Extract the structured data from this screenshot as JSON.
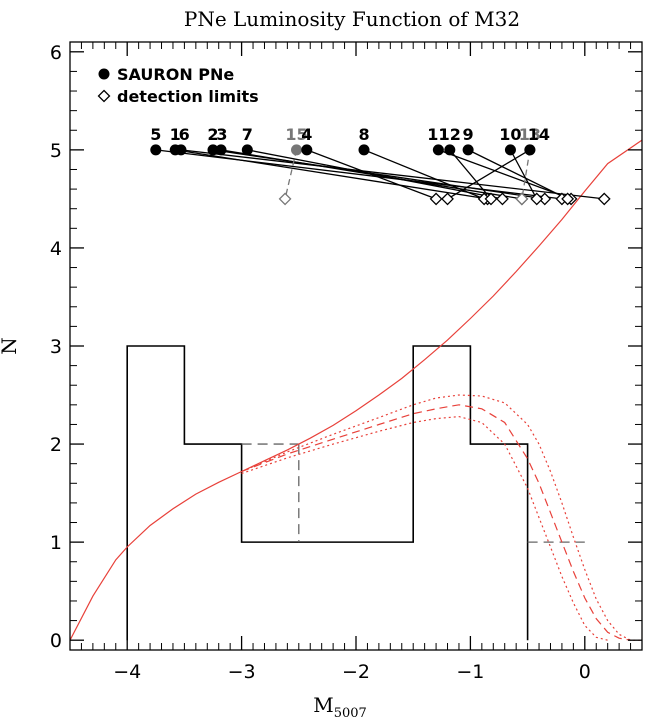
{
  "chart_data": {
    "type": "line",
    "title": "PNe Luminosity Function of M32",
    "xlabel_main": "M",
    "xlabel_sub": "5007",
    "ylabel": "N",
    "xlim": [
      -4.5,
      0.5
    ],
    "ylim": [
      -0.1,
      6.1
    ],
    "xticks": [
      -4,
      -3,
      -2,
      -1,
      0
    ],
    "yticks": [
      0,
      1,
      2,
      3,
      4,
      5,
      6
    ],
    "legend": {
      "placement": "top-left",
      "entries": [
        {
          "marker": "filled-circle",
          "label": "SAURON PNe"
        },
        {
          "marker": "open-diamond",
          "label": "detection limits"
        }
      ]
    },
    "histogram_solid": [
      {
        "x0": -4.0,
        "x1": -3.5,
        "count": 3
      },
      {
        "x0": -3.5,
        "x1": -3.0,
        "count": 2
      },
      {
        "x0": -3.0,
        "x1": -1.5,
        "count": 1
      },
      {
        "x0": -1.5,
        "x1": -1.0,
        "count": 3
      },
      {
        "x0": -1.0,
        "x1": -0.5,
        "count": 2
      }
    ],
    "histogram_dashed": [
      {
        "x0": -3.0,
        "x1": -2.5,
        "count": 2
      },
      {
        "x0": 0.0,
        "x1": -0.5,
        "count": 1
      }
    ],
    "pne": [
      {
        "id": "5",
        "m": -3.75,
        "limit": -0.2,
        "gray": false
      },
      {
        "id": "1",
        "m": -3.58,
        "limit": -0.85,
        "gray": false
      },
      {
        "id": "6",
        "m": -3.53,
        "limit": 0.17,
        "gray": false
      },
      {
        "id": "2",
        "m": -3.25,
        "limit": -0.35,
        "gray": false
      },
      {
        "id": "3",
        "m": -3.18,
        "limit": -0.55,
        "gray": false
      },
      {
        "id": "7",
        "m": -2.95,
        "limit": -0.72,
        "gray": false
      },
      {
        "id": "15",
        "m": -2.52,
        "limit": -2.62,
        "gray": true
      },
      {
        "id": "4",
        "m": -2.43,
        "limit": -1.3,
        "gray": false
      },
      {
        "id": "8",
        "m": -1.93,
        "limit": -0.88,
        "gray": false
      },
      {
        "id": "11",
        "m": -1.28,
        "limit": -0.12,
        "gray": false
      },
      {
        "id": "12",
        "m": -1.18,
        "limit": -0.82,
        "gray": false
      },
      {
        "id": "9",
        "m": -1.02,
        "limit": -0.15,
        "gray": false
      },
      {
        "id": "10",
        "m": -0.65,
        "limit": -0.42,
        "gray": false
      },
      {
        "id": "13",
        "m": -0.48,
        "limit": -0.55,
        "gray": true
      },
      {
        "id": "14",
        "m": -0.48,
        "limit": -1.2,
        "gray": false
      }
    ],
    "pne_y": 5,
    "limits_y": 4.5,
    "curve_solid": {
      "x": [
        -4.5,
        -4.3,
        -4.1,
        -4.0,
        -3.8,
        -3.6,
        -3.4,
        -3.2,
        -3.0,
        -2.8,
        -2.6,
        -2.4,
        -2.2,
        -2.0,
        -1.8,
        -1.6,
        -1.4,
        -1.2,
        -1.0,
        -0.8,
        -0.6,
        -0.4,
        -0.2,
        0.0,
        0.2,
        0.5
      ],
      "y": [
        0.0,
        0.45,
        0.82,
        0.95,
        1.17,
        1.34,
        1.49,
        1.61,
        1.72,
        1.83,
        1.94,
        2.06,
        2.19,
        2.34,
        2.5,
        2.67,
        2.86,
        3.06,
        3.28,
        3.51,
        3.76,
        4.02,
        4.29,
        4.58,
        4.86,
        5.1
      ]
    },
    "curve_dashed": {
      "x": [
        -3.0,
        -2.6,
        -2.2,
        -1.8,
        -1.5,
        -1.3,
        -1.1,
        -0.9,
        -0.7,
        -0.5,
        -0.4,
        -0.3,
        -0.2,
        -0.1,
        0.0,
        0.1,
        0.2,
        0.3,
        0.4
      ],
      "y": [
        1.72,
        1.9,
        2.05,
        2.2,
        2.31,
        2.36,
        2.4,
        2.36,
        2.22,
        1.85,
        1.6,
        1.3,
        1.0,
        0.7,
        0.43,
        0.22,
        0.08,
        0.02,
        0.0
      ]
    },
    "curve_dotted_upper": {
      "x": [
        -3.0,
        -2.6,
        -2.2,
        -1.8,
        -1.5,
        -1.3,
        -1.1,
        -0.9,
        -0.7,
        -0.5,
        -0.4,
        -0.3,
        -0.2,
        -0.1,
        0.0,
        0.1,
        0.2,
        0.3,
        0.4,
        0.5
      ],
      "y": [
        1.72,
        1.92,
        2.1,
        2.27,
        2.4,
        2.47,
        2.5,
        2.49,
        2.42,
        2.2,
        2.0,
        1.72,
        1.4,
        1.05,
        0.72,
        0.42,
        0.2,
        0.06,
        0.0,
        0.0
      ]
    },
    "curve_dotted_lower": {
      "x": [
        -3.0,
        -2.6,
        -2.2,
        -1.8,
        -1.5,
        -1.3,
        -1.1,
        -0.9,
        -0.7,
        -0.5,
        -0.4,
        -0.3,
        -0.2,
        -0.1,
        0.0,
        0.1,
        0.2
      ],
      "y": [
        1.7,
        1.86,
        2.0,
        2.13,
        2.22,
        2.26,
        2.28,
        2.22,
        2.0,
        1.55,
        1.25,
        0.95,
        0.65,
        0.38,
        0.15,
        0.03,
        0.0
      ]
    },
    "colors": {
      "curve": "#e8413a",
      "gray": "#777777",
      "ink": "#000000"
    }
  }
}
